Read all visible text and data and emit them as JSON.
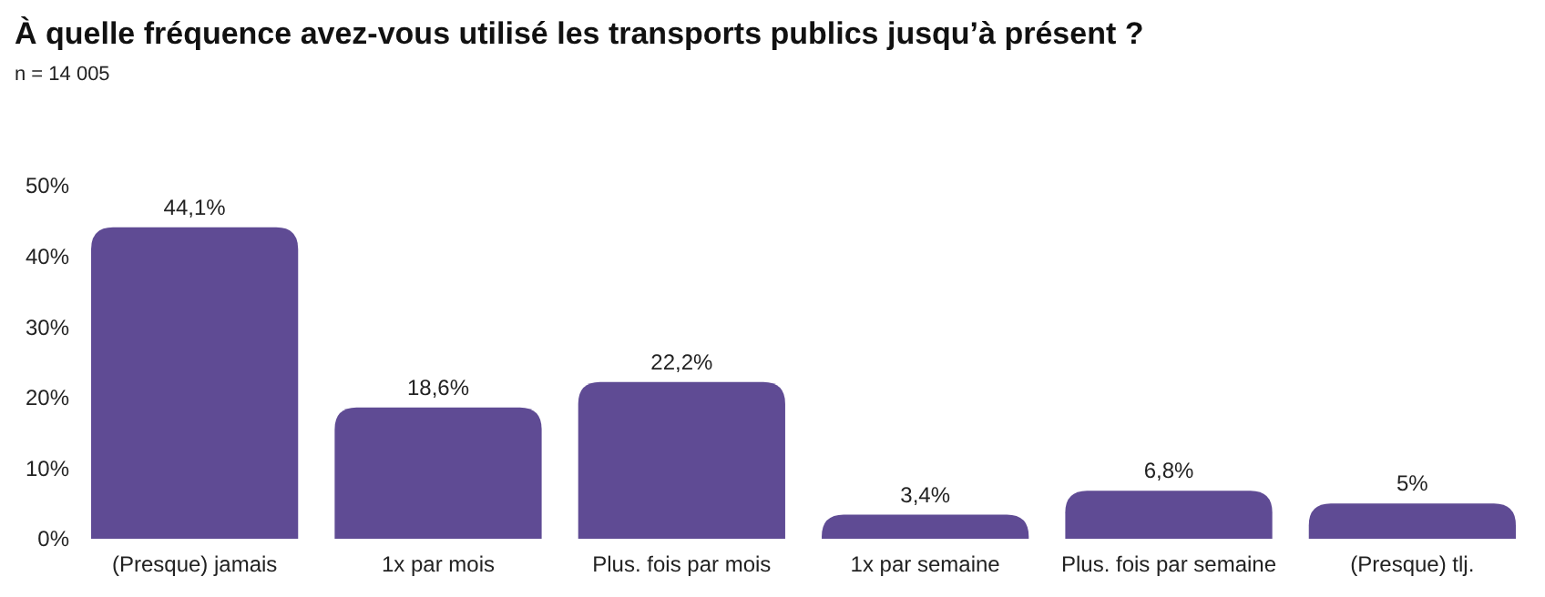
{
  "chart_data": {
    "type": "bar",
    "title": "À quelle fréquence avez-vous utilisé les transports publics jusqu’à présent ?",
    "subtitle": "n = 14 005",
    "categories": [
      "(Presque) jamais",
      "1x par mois",
      "Plus. fois par mois",
      "1x par semaine",
      "Plus. fois par semaine",
      "(Presque) tlj."
    ],
    "values": [
      44.1,
      18.6,
      22.2,
      3.4,
      6.8,
      5
    ],
    "value_labels": [
      "44,1%",
      "18,6%",
      "22,2%",
      "3,4%",
      "6,8%",
      "5%"
    ],
    "color": "#5f4b94",
    "ylim": [
      0,
      50
    ],
    "yticks": [
      {
        "value": 0,
        "label": "0%"
      },
      {
        "value": 10,
        "label": "10%"
      },
      {
        "value": 20,
        "label": "20%"
      },
      {
        "value": 30,
        "label": "30%"
      },
      {
        "value": 40,
        "label": "40%"
      },
      {
        "value": 50,
        "label": "50%"
      }
    ],
    "grid": false
  }
}
